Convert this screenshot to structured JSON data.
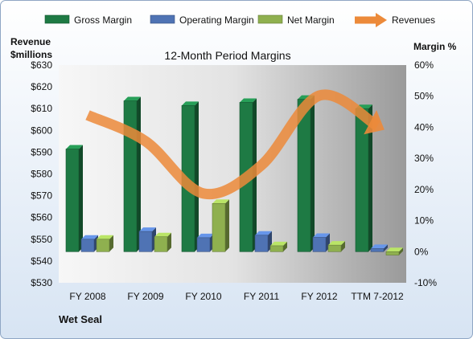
{
  "chart_data": {
    "type": "bar",
    "title": "12-Month Period Margins",
    "categories": [
      "FY 2008",
      "FY 2009",
      "FY 2010",
      "FY 2011",
      "FY 2012",
      "TTM 7-2012"
    ],
    "left_axis": {
      "label_line1": "Revenue",
      "label_line2": "$millions",
      "ticks": [
        "$630",
        "$620",
        "$610",
        "$600",
        "$590",
        "$580",
        "$570",
        "$560",
        "$550",
        "$540",
        "$530"
      ],
      "range": [
        530,
        630
      ]
    },
    "right_axis": {
      "label": "Margin %",
      "ticks": [
        "60%",
        "50%",
        "40%",
        "30%",
        "20%",
        "10%",
        "0%",
        "-10%"
      ],
      "range": [
        -10,
        60
      ]
    },
    "series": [
      {
        "name": "Gross Margin",
        "color": "#1e7a44",
        "axis": "right",
        "values": [
          33,
          48.5,
          47,
          48,
          49,
          46
        ]
      },
      {
        "name": "Operating Margin",
        "color": "#4f73b4",
        "axis": "right",
        "values": [
          4,
          6.5,
          4.5,
          5.3,
          4.6,
          1
        ]
      },
      {
        "name": "Net Margin",
        "color": "#8fb04f",
        "axis": "right",
        "values": [
          4,
          4.8,
          15.5,
          1.9,
          2.1,
          -1.1
        ]
      },
      {
        "name": "Revenues",
        "color": "#ec8a3a",
        "axis": "left",
        "type": "line",
        "values": [
          607,
          595,
          571,
          584,
          616,
          602
        ]
      }
    ],
    "legend_position": "top",
    "grid": false
  },
  "footer": {
    "company": "Wet Seal"
  }
}
